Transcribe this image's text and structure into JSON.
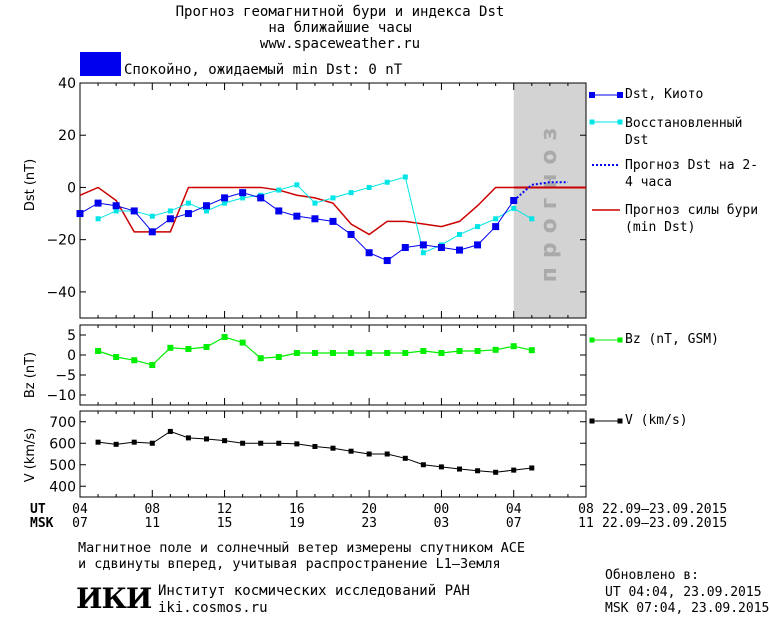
{
  "header": {
    "line1": "Прогноз геомагнитной бури и индекса Dst",
    "line2": "на ближайшие часы",
    "url": "www.spaceweather.ru"
  },
  "status": {
    "text": "Спокойно, ожидаемый min Dst: 0 nT",
    "color": "#0000ee"
  },
  "colors": {
    "dst": "#0000ee",
    "recovered": "#00e5e5",
    "forecast": "#0000ee",
    "storm": "#cc0000",
    "bz": "#00ee00",
    "v": "#000000",
    "forecast_bg": "#d3d3d3"
  },
  "chart_data": [
    {
      "type": "line",
      "ylabel": "Dst (nT)",
      "ylim": [
        -50,
        40
      ],
      "yticks": [
        "40",
        "20",
        "0",
        "−20",
        "−40"
      ],
      "xlim": [
        0,
        28
      ],
      "forecast_zone": {
        "label": "прогноз",
        "from": 24,
        "to": 28
      },
      "series": [
        {
          "name": "Dst, Киото",
          "style": "line-square",
          "x": [
            0,
            1,
            2,
            3,
            4,
            5,
            6,
            7,
            8,
            9,
            10,
            11,
            12,
            13,
            14,
            15,
            16,
            17,
            18,
            19,
            20,
            21,
            22,
            23,
            24
          ],
          "y": [
            -10,
            -6,
            -7,
            -9,
            -17,
            -12,
            -10,
            -7,
            -4,
            -2,
            -4,
            -9,
            -11,
            -12,
            -13,
            -18,
            -25,
            -28,
            -23,
            -22,
            -23,
            -24,
            -22,
            -15,
            -5
          ]
        },
        {
          "name": "Восстановленный Dst",
          "style": "line-small-square",
          "x": [
            1,
            2,
            3,
            4,
            5,
            6,
            7,
            8,
            9,
            10,
            11,
            12,
            13,
            14,
            15,
            16,
            17,
            18,
            19,
            20,
            21,
            22,
            23,
            24,
            25
          ],
          "y": [
            -12,
            -9,
            -9,
            -11,
            -9,
            -6,
            -9,
            -6,
            -4,
            -3,
            -1,
            1,
            -6,
            -4,
            -2,
            0,
            2,
            4,
            -25,
            -22,
            -18,
            -15,
            -12,
            -8,
            -12
          ]
        },
        {
          "name": "Прогноз Dst на 2-4 часа",
          "style": "dotted",
          "x": [
            24,
            25,
            26,
            27
          ],
          "y": [
            -5,
            1,
            2,
            2
          ]
        },
        {
          "name": "Прогноз силы бури (min Dst)",
          "style": "line",
          "x": [
            0,
            1,
            2,
            3,
            4,
            5,
            6,
            7,
            8,
            9,
            10,
            11,
            12,
            13,
            14,
            15,
            16,
            17,
            18,
            19,
            20,
            21,
            22,
            23,
            24,
            25,
            26,
            27,
            28
          ],
          "y": [
            -3,
            0,
            -5,
            -17,
            -17,
            -17,
            0,
            0,
            0,
            0,
            0,
            -1,
            -3,
            -4,
            -6,
            -14,
            -18,
            -13,
            -13,
            -14,
            -15,
            -13,
            -7,
            0,
            0,
            0,
            0,
            0,
            0
          ]
        }
      ]
    },
    {
      "type": "line",
      "ylabel": "Bz (nT)",
      "ylim": [
        -12.5,
        7.5
      ],
      "yticks": [
        "5",
        "0",
        "−5",
        "−10"
      ],
      "xlim": [
        0,
        28
      ],
      "series": [
        {
          "name": "Bz (nT, GSM)",
          "x": [
            1,
            2,
            3,
            4,
            5,
            6,
            7,
            8,
            9,
            10,
            11,
            12,
            13,
            14,
            15,
            16,
            17,
            18,
            19,
            20,
            21,
            22,
            23,
            24,
            25
          ],
          "y": [
            1,
            -0.5,
            -1.3,
            -2.5,
            1.8,
            1.5,
            2,
            4.5,
            3.1,
            -0.8,
            -0.5,
            0.5,
            0.5,
            0.5,
            0.5,
            0.5,
            0.5,
            0.5,
            1,
            0.5,
            1,
            1,
            1.3,
            2.2,
            1.2
          ]
        }
      ]
    },
    {
      "type": "line",
      "ylabel": "V (km/s)",
      "ylim": [
        350,
        750
      ],
      "yticks": [
        "700",
        "600",
        "500",
        "400"
      ],
      "xlim": [
        0,
        28
      ],
      "series": [
        {
          "name": "V (km/s)",
          "x": [
            1,
            2,
            3,
            4,
            5,
            6,
            7,
            8,
            9,
            10,
            11,
            12,
            13,
            14,
            15,
            16,
            17,
            18,
            19,
            20,
            21,
            22,
            23,
            24,
            25
          ],
          "y": [
            605,
            595,
            605,
            600,
            655,
            625,
            620,
            612,
            600,
            600,
            600,
            597,
            585,
            577,
            563,
            550,
            550,
            530,
            500,
            490,
            480,
            472,
            465,
            475,
            485
          ]
        }
      ]
    }
  ],
  "axis": {
    "ut_label": "UT",
    "msk_label": "MSK",
    "ut_ticks": [
      "04",
      "08",
      "12",
      "16",
      "20",
      "00",
      "04",
      "08"
    ],
    "msk_ticks": [
      "07",
      "11",
      "15",
      "19",
      "23",
      "03",
      "07",
      "11"
    ],
    "date_range": "22.09–23.09.2015"
  },
  "footer": {
    "note1": "Магнитное поле и солнечный ветер измерены спутником ACE",
    "note2": "и сдвинуты вперед, учитывая распространение L1–Земля",
    "logo": "ИКИ",
    "org": "Институт космических исследований РАН",
    "site": "iki.cosmos.ru",
    "updated_label": "Обновлено в:",
    "updated_ut": "UT  04:04, 23.09.2015",
    "updated_msk": "MSK 07:04, 23.09.2015"
  }
}
